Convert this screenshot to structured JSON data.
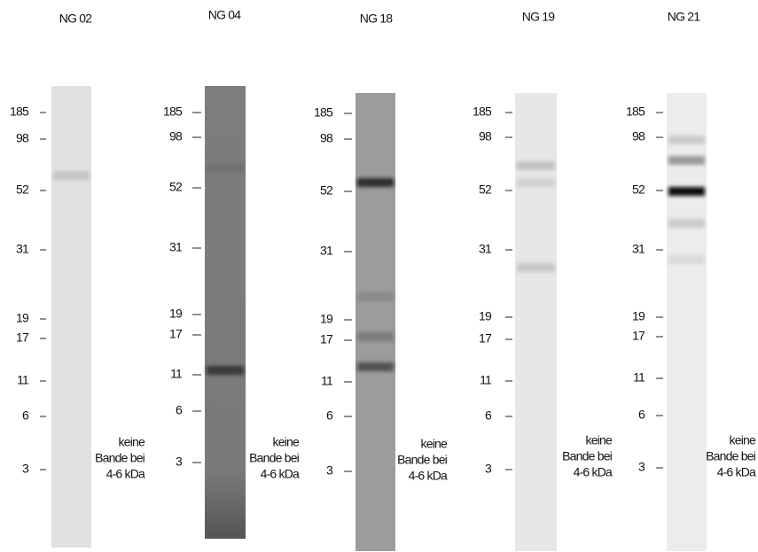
{
  "panels": [
    {
      "title": "NG 02",
      "markers": [
        185,
        98,
        52,
        31,
        19,
        17,
        11,
        6,
        3
      ],
      "note": [
        "keine",
        "Bande bei",
        "4-6 kDa"
      ]
    },
    {
      "title": "NG 04",
      "markers": [
        185,
        98,
        52,
        31,
        19,
        17,
        11,
        6,
        3
      ],
      "note": [
        "keine",
        "Bande bei",
        "4-6 kDa"
      ]
    },
    {
      "title": "NG 18",
      "markers": [
        185,
        98,
        52,
        31,
        19,
        17,
        11,
        6,
        3
      ],
      "note": [
        "keine",
        "Bande bei",
        "4-6 kDa"
      ]
    },
    {
      "title": "NG 19",
      "markers": [
        185,
        98,
        52,
        31,
        19,
        17,
        11,
        6,
        3
      ],
      "note": [
        "keine",
        "Bande bei",
        "4-6 kDa"
      ]
    },
    {
      "title": "NG 21",
      "markers": [
        185,
        98,
        52,
        31,
        19,
        17,
        11,
        6,
        3
      ],
      "note": [
        "keine",
        "Bande bei",
        "4-6 kDa"
      ]
    }
  ]
}
